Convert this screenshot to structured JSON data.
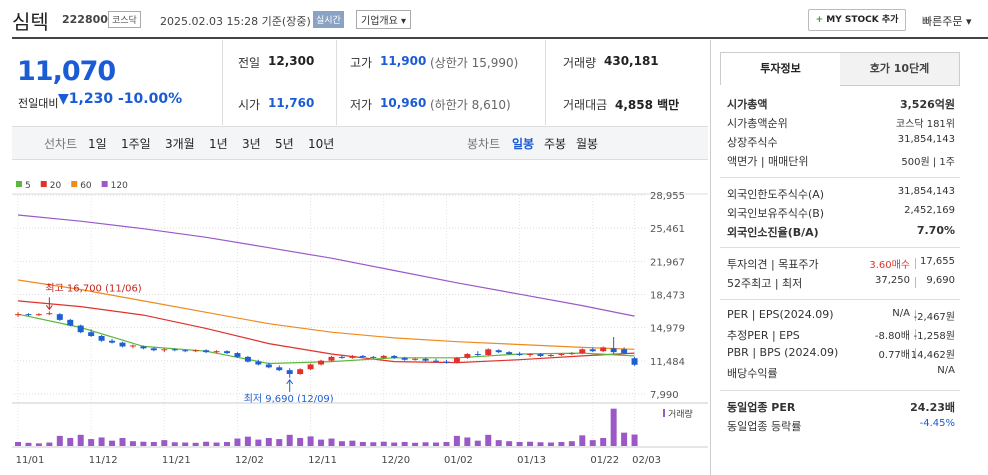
{
  "header": {
    "name": "심텍",
    "code": "222800",
    "market": "코스닥",
    "datetime": "2025.02.03 15:28 기준(장중)",
    "realtime": "실시간",
    "company_info": "기업개요",
    "my_stock": "MY STOCK 추가",
    "quick_order": "빠른주문"
  },
  "price": {
    "current": "11,070",
    "change_label": "전일대비",
    "change": "1,230",
    "change_pct": "-10.00%"
  },
  "stats": [
    {
      "label": "전일",
      "value": "12,300",
      "color": "#222"
    },
    {
      "label": "고가",
      "value": "11,900",
      "extra": "(상한가 15,990)",
      "color": "#1a5bd6"
    },
    {
      "label": "거래량",
      "value": "430,181",
      "color": "#222"
    },
    {
      "label": "시가",
      "value": "11,760",
      "color": "#1a5bd6"
    },
    {
      "label": "저가",
      "value": "10,960",
      "extra": "(하한가 8,610)",
      "color": "#1a5bd6"
    },
    {
      "label": "거래대금",
      "value": "4,858 백만",
      "color": "#222"
    }
  ],
  "periods": {
    "line_label": "선차트",
    "line_items": [
      "1일",
      "1주일",
      "3개월",
      "1년",
      "3년",
      "5년",
      "10년"
    ],
    "candle_label": "봉차트",
    "candle_items": [
      "일봉",
      "주봉",
      "월봉"
    ],
    "active": "일봉"
  },
  "chart": {
    "type": "candlestick",
    "up_color": "#e0322b",
    "down_color": "#1f5fd1",
    "legend": [
      {
        "name": "5",
        "color": "#5cb83c"
      },
      {
        "name": "20",
        "color": "#e0322b"
      },
      {
        "name": "60",
        "color": "#f08a1c"
      },
      {
        "name": "120",
        "color": "#9b59c7"
      }
    ],
    "ylim": [
      7990,
      28955
    ],
    "yticks": [
      {
        "value": 28955,
        "label": "28,955"
      },
      {
        "value": 25461,
        "label": "25,461"
      },
      {
        "value": 21967,
        "label": "21,967"
      },
      {
        "value": 18473,
        "label": "18,473"
      },
      {
        "value": 14979,
        "label": "14,979"
      },
      {
        "value": 11484,
        "label": "11,484"
      },
      {
        "value": 7990,
        "label": "7,990"
      }
    ],
    "xticks": [
      {
        "value": 0,
        "label": "11/01"
      },
      {
        "value": 7,
        "label": "11/12"
      },
      {
        "value": 14,
        "label": "11/21"
      },
      {
        "value": 21,
        "label": "12/02"
      },
      {
        "value": 28,
        "label": "12/11"
      },
      {
        "value": 35,
        "label": "12/20"
      },
      {
        "value": 41,
        "label": "01/02"
      },
      {
        "value": 48,
        "label": "01/13"
      },
      {
        "value": 55,
        "label": "01/22"
      },
      {
        "value": 59,
        "label": "02/03"
      }
    ],
    "candles": [
      [
        16300,
        16600,
        16100,
        16400
      ],
      [
        16400,
        16500,
        16200,
        16300
      ],
      [
        16300,
        16500,
        16200,
        16400
      ],
      [
        16400,
        16700,
        16300,
        16500
      ],
      [
        16400,
        16500,
        15700,
        15800
      ],
      [
        15800,
        15900,
        15100,
        15200
      ],
      [
        15200,
        15300,
        14400,
        14500
      ],
      [
        14500,
        14800,
        14000,
        14100
      ],
      [
        14100,
        14200,
        13500,
        13600
      ],
      [
        13600,
        13800,
        13300,
        13400
      ],
      [
        13400,
        13500,
        12900,
        13000
      ],
      [
        13000,
        13200,
        12800,
        13100
      ],
      [
        13000,
        13100,
        12700,
        12800
      ],
      [
        12800,
        12900,
        12500,
        12600
      ],
      [
        12600,
        12800,
        12400,
        12700
      ],
      [
        12700,
        12800,
        12500,
        12600
      ],
      [
        12600,
        12700,
        12400,
        12500
      ],
      [
        12500,
        12700,
        12400,
        12600
      ],
      [
        12600,
        12700,
        12300,
        12400
      ],
      [
        12400,
        12600,
        12300,
        12500
      ],
      [
        12500,
        12600,
        12200,
        12300
      ],
      [
        12300,
        12400,
        11800,
        11900
      ],
      [
        11900,
        12000,
        11300,
        11400
      ],
      [
        11400,
        11600,
        11000,
        11100
      ],
      [
        11100,
        11300,
        10700,
        10800
      ],
      [
        10800,
        11000,
        10400,
        10500
      ],
      [
        10500,
        10700,
        9690,
        10100
      ],
      [
        10100,
        10700,
        10000,
        10600
      ],
      [
        10600,
        11200,
        10500,
        11100
      ],
      [
        11100,
        11600,
        11000,
        11500
      ],
      [
        11500,
        12000,
        11400,
        11900
      ],
      [
        11900,
        12100,
        11700,
        11800
      ],
      [
        11800,
        12100,
        11700,
        12000
      ],
      [
        12000,
        12100,
        11800,
        11900
      ],
      [
        11900,
        12000,
        11700,
        11800
      ],
      [
        11800,
        12100,
        11700,
        12000
      ],
      [
        12000,
        12100,
        11700,
        11800
      ],
      [
        11800,
        11900,
        11500,
        11600
      ],
      [
        11600,
        11800,
        11500,
        11700
      ],
      [
        11700,
        11800,
        11400,
        11500
      ],
      [
        11500,
        11700,
        11300,
        11400
      ],
      [
        11400,
        11600,
        11200,
        11300
      ],
      [
        11300,
        11900,
        11200,
        11800
      ],
      [
        11800,
        12300,
        11700,
        12200
      ],
      [
        12200,
        12500,
        12000,
        12100
      ],
      [
        12100,
        12800,
        12000,
        12700
      ],
      [
        12600,
        12700,
        12300,
        12400
      ],
      [
        12400,
        12500,
        12100,
        12200
      ],
      [
        12200,
        12400,
        12000,
        12100
      ],
      [
        12100,
        12300,
        11900,
        12200
      ],
      [
        12200,
        12300,
        11900,
        12000
      ],
      [
        12000,
        12200,
        11900,
        12100
      ],
      [
        12100,
        12300,
        12000,
        12200
      ],
      [
        12200,
        12400,
        12100,
        12300
      ],
      [
        12300,
        12800,
        12200,
        12700
      ],
      [
        12700,
        12900,
        12400,
        12500
      ],
      [
        12500,
        13000,
        12400,
        12900
      ],
      [
        12800,
        14000,
        12200,
        12400
      ],
      [
        12700,
        12900,
        12200,
        12300
      ],
      [
        11760,
        11900,
        10960,
        11070
      ]
    ],
    "ma": [
      {
        "name": "120",
        "color": "#9b59c7",
        "x": [
          0,
          6,
          12,
          18,
          24,
          30,
          36,
          42,
          48,
          54,
          59
        ],
        "values": [
          26850,
          26200,
          25400,
          24500,
          23400,
          22300,
          21000,
          19700,
          18500,
          17300,
          16200
        ]
      },
      {
        "name": "60",
        "color": "#f08a1c",
        "x": [
          0,
          6,
          12,
          18,
          24,
          30,
          36,
          42,
          48,
          54,
          59
        ],
        "values": [
          20000,
          19000,
          17800,
          16600,
          15400,
          14500,
          13900,
          13500,
          13200,
          12900,
          12700
        ]
      },
      {
        "name": "20",
        "color": "#e0322b",
        "x": [
          0,
          6,
          12,
          18,
          24,
          30,
          36,
          42,
          48,
          54,
          59
        ],
        "values": [
          17800,
          17200,
          16300,
          14900,
          13300,
          12200,
          11400,
          11300,
          11600,
          12000,
          12300
        ]
      },
      {
        "name": "5",
        "color": "#5cb83c",
        "x": [
          0,
          6,
          12,
          18,
          24,
          30,
          36,
          42,
          48,
          54,
          59
        ],
        "values": [
          16400,
          15000,
          13000,
          12500,
          11200,
          11400,
          11800,
          11800,
          12200,
          12300,
          12000
        ]
      }
    ],
    "volume_label": "거래량",
    "volume_color": "#9b59c7",
    "volume_ylim": [
      0,
      1800000
    ],
    "volume": [
      150000,
      120000,
      100000,
      130000,
      380000,
      300000,
      420000,
      260000,
      320000,
      200000,
      300000,
      180000,
      160000,
      150000,
      220000,
      140000,
      130000,
      120000,
      160000,
      130000,
      150000,
      280000,
      350000,
      240000,
      300000,
      260000,
      420000,
      300000,
      360000,
      240000,
      280000,
      180000,
      200000,
      150000,
      140000,
      160000,
      130000,
      150000,
      120000,
      140000,
      130000,
      150000,
      380000,
      320000,
      200000,
      420000,
      220000,
      180000,
      150000,
      160000,
      140000,
      130000,
      150000,
      180000,
      400000,
      220000,
      300000,
      1400000,
      500000,
      430181
    ],
    "annotations": [
      {
        "label": "최고 16,700 (11/06)",
        "index": 3,
        "kind": "high",
        "color": "#c0261f"
      },
      {
        "label": "최저 9,690 (12/09)",
        "index": 26,
        "kind": "low",
        "color": "#1f5fd1"
      }
    ]
  },
  "info": {
    "tabs": [
      "투자정보",
      "호가 10단계"
    ],
    "sections": [
      [
        {
          "label": "시가총액",
          "value": "3,526억원",
          "bold": true
        },
        {
          "label": "시가총액순위",
          "value": "코스닥 181위"
        },
        {
          "label": "상장주식수",
          "value": "31,854,143"
        },
        {
          "label": "액면가 | 매매단위",
          "value": "500원 | 1주"
        }
      ],
      [
        {
          "label": "외국인한도주식수(A)",
          "value": "31,854,143"
        },
        {
          "label": "외국인보유주식수(B)",
          "value": "2,452,169"
        },
        {
          "label": "외국인소진율(B/A)",
          "value": "7.70%",
          "bold": true
        }
      ],
      [
        {
          "label": "투자의견 | 목표주가",
          "values": [
            "3.60매수",
            "17,655"
          ],
          "color": "#e0322b"
        },
        {
          "label": "52주최고 | 최저",
          "values": [
            "37,250",
            "9,690"
          ]
        }
      ],
      [
        {
          "label": "PER | EPS(2024.09)",
          "values": [
            "N/A",
            "-2,467원"
          ]
        },
        {
          "label": "추정PER | EPS",
          "values": [
            "-8.80배",
            "-1,258원"
          ]
        },
        {
          "label": "PBR | BPS (2024.09)",
          "values": [
            "0.77배",
            "14,462원"
          ]
        },
        {
          "label": "배당수익률",
          "value": "N/A"
        }
      ],
      [
        {
          "label": "동일업종 PER",
          "value": "24.23배",
          "bold": true
        },
        {
          "label": "동일업종 등락률",
          "value": "-4.45%",
          "color": "#1a5bd6"
        }
      ]
    ]
  }
}
